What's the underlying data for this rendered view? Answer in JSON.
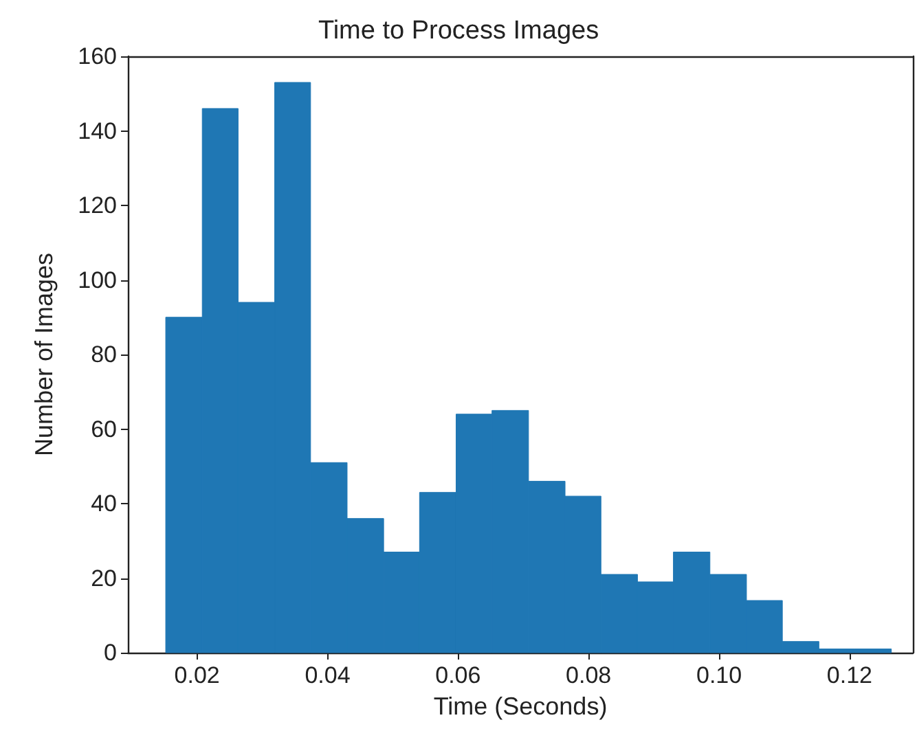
{
  "chart_data": {
    "type": "histogram",
    "title": "Time to Process Images",
    "xlabel": "Time (Seconds)",
    "ylabel": "Number of Images",
    "bins": [
      0.0152,
      0.0208,
      0.0263,
      0.0319,
      0.0374,
      0.043,
      0.0486,
      0.0541,
      0.0597,
      0.0652,
      0.0708,
      0.0764,
      0.0819,
      0.0875,
      0.093,
      0.0986,
      0.1042,
      0.1097,
      0.1153,
      0.1208,
      0.1264
    ],
    "values": [
      90,
      146,
      94,
      153,
      51,
      36,
      27,
      43,
      64,
      65,
      46,
      42,
      21,
      19,
      27,
      21,
      14,
      3,
      1,
      1
    ],
    "color": "#1f77b4",
    "xlim": [
      0.0094,
      0.1297
    ],
    "xticks": [
      {
        "value": 0.02,
        "label": "0.02"
      },
      {
        "value": 0.04,
        "label": "0.04"
      },
      {
        "value": 0.06,
        "label": "0.06"
      },
      {
        "value": 0.08,
        "label": "0.08"
      },
      {
        "value": 0.1,
        "label": "0.10"
      },
      {
        "value": 0.12,
        "label": "0.12"
      }
    ],
    "ylim": [
      0,
      160
    ],
    "yticks": [
      0,
      20,
      40,
      60,
      80,
      100,
      120,
      140,
      160
    ],
    "grid": false
  }
}
